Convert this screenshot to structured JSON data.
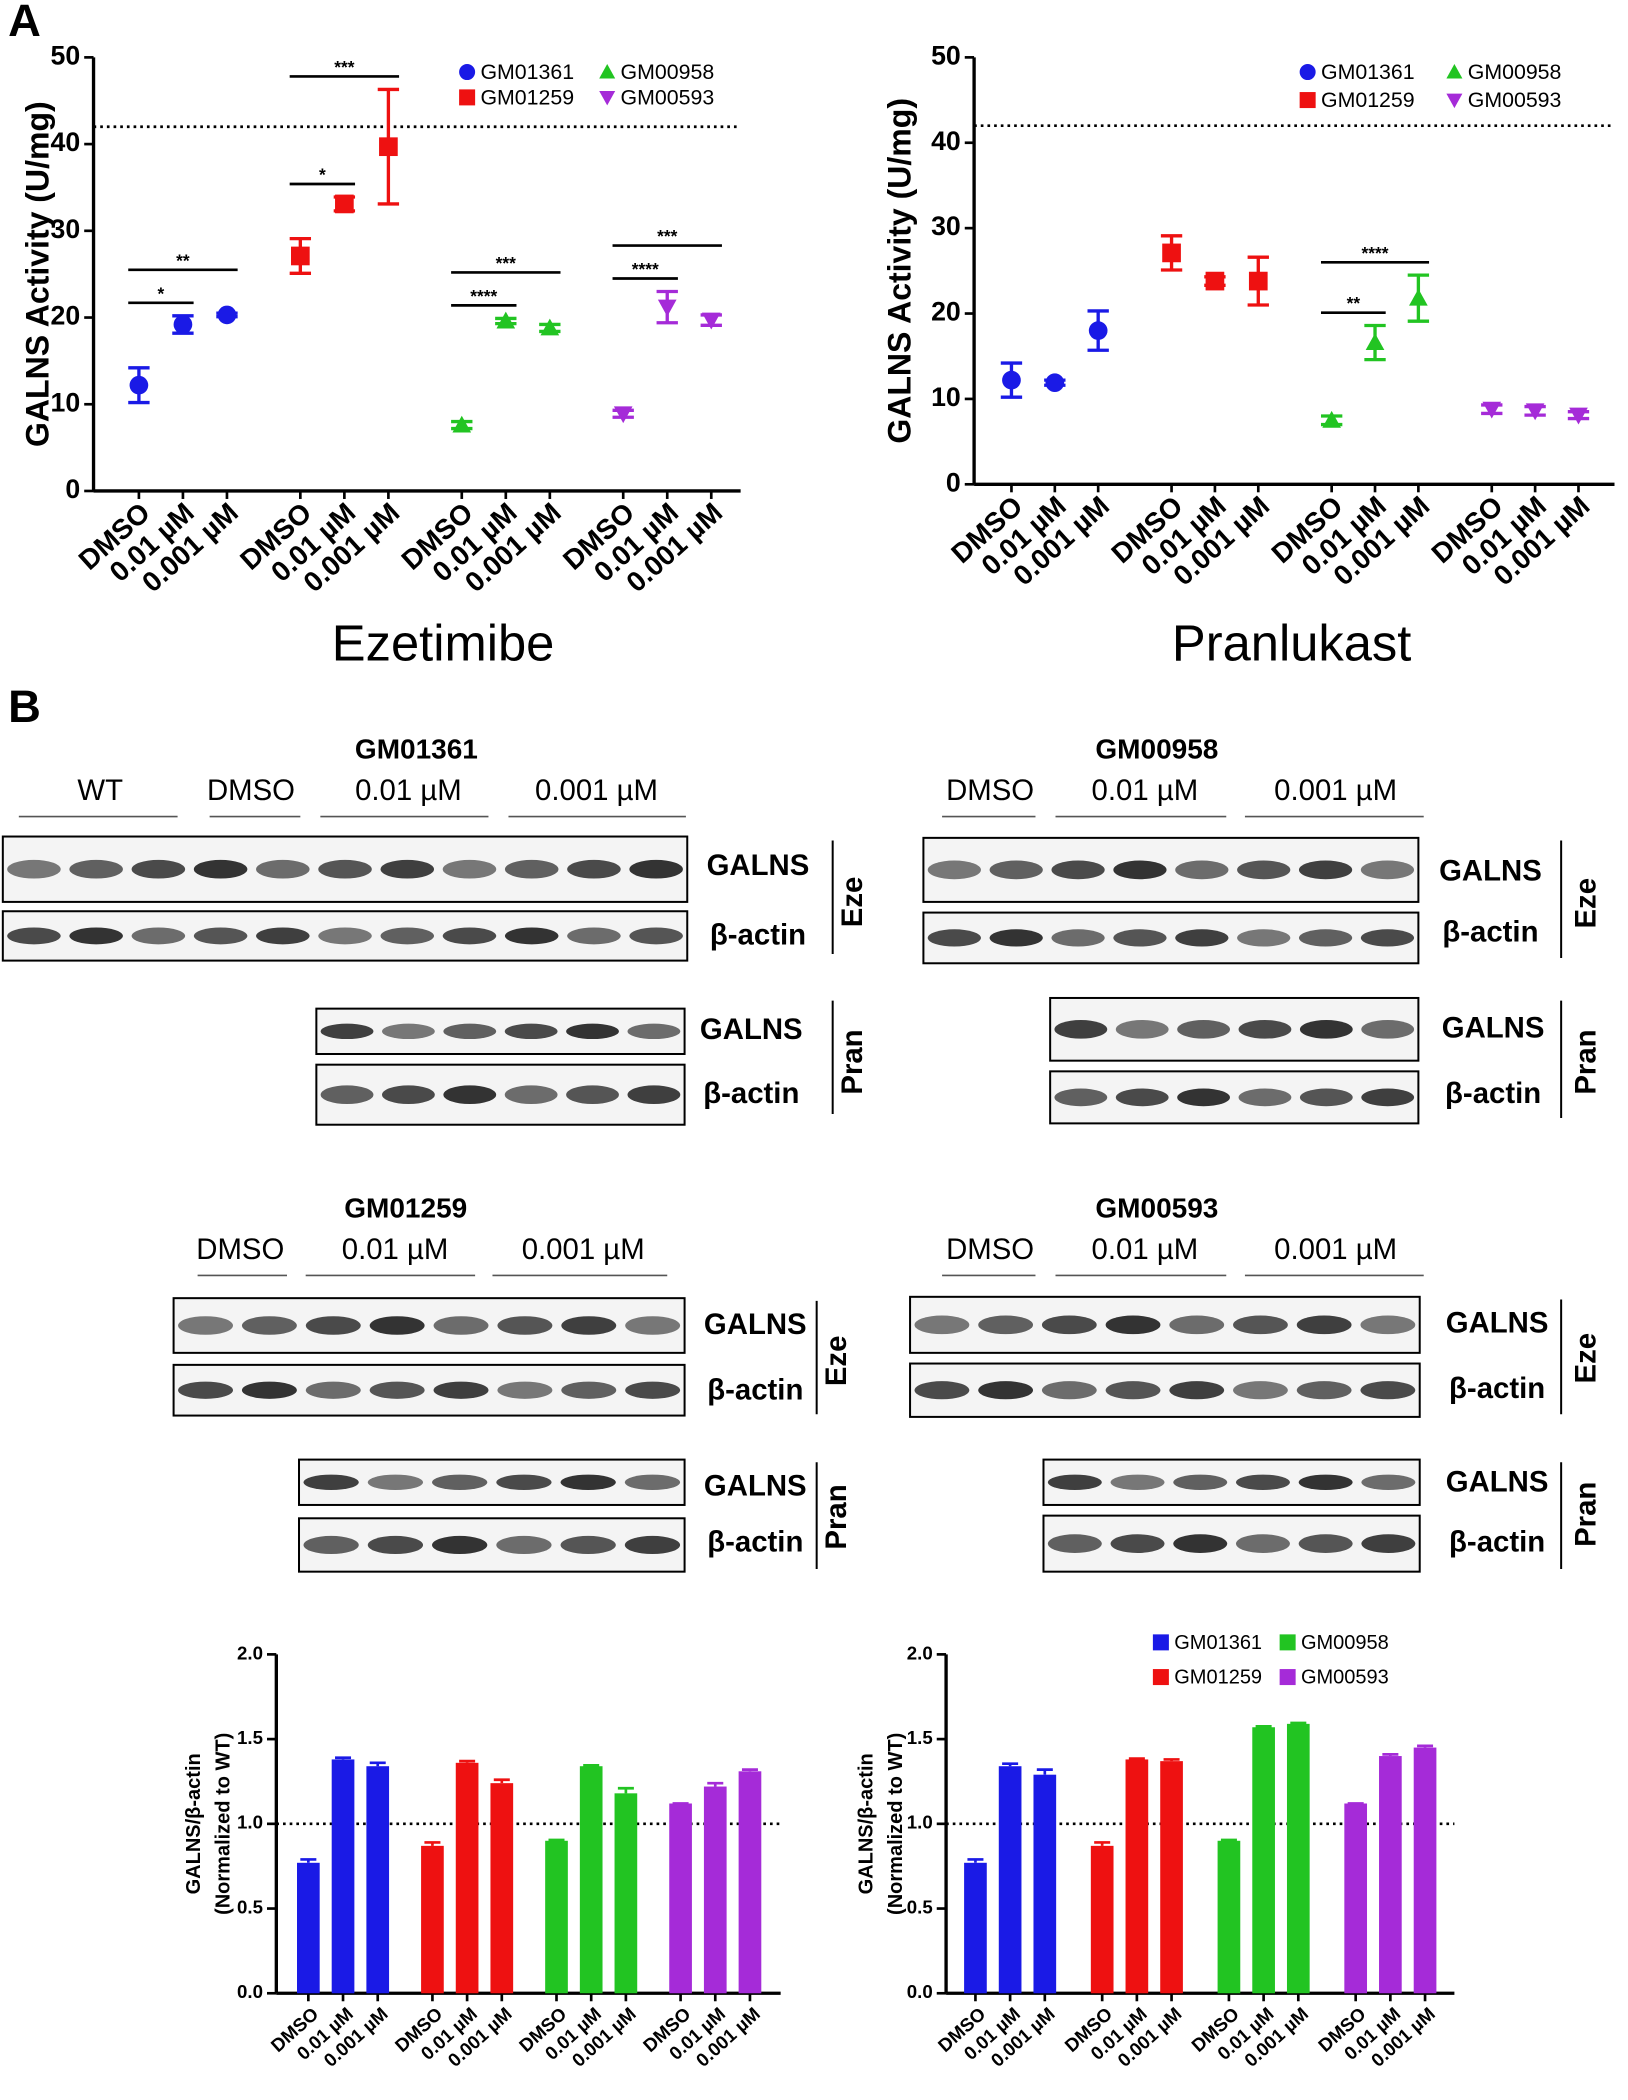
{
  "panels": [
    "A",
    "B"
  ],
  "chart_data": [
    {
      "type": "scatter",
      "x_title": "Ezetimibe",
      "y_title": "GALNS Activity (U/mg)",
      "categories": [
        "DMSO",
        "0.01 µM",
        "0.001 µM",
        "DMSO",
        "0.01 µM",
        "0.001 µM",
        "DMSO",
        "0.01 µM",
        "0.001 µM",
        "DMSO",
        "0.01 µM",
        "0.001 µM"
      ],
      "series": [
        {
          "name": "GM01361",
          "color": "#1a1ae6",
          "marker": "circle",
          "values": [
            12.2,
            19.2,
            20.3,
            null,
            null,
            null,
            null,
            null,
            null,
            null,
            null,
            null
          ],
          "errors": [
            2.0,
            1.0,
            0.2,
            null,
            null,
            null,
            null,
            null,
            null,
            null,
            null,
            null
          ]
        },
        {
          "name": "GM01259",
          "color": "#ee1111",
          "marker": "square",
          "values": [
            null,
            null,
            null,
            27.1,
            33.1,
            39.7,
            null,
            null,
            null,
            null,
            null,
            null
          ],
          "errors": [
            null,
            null,
            null,
            2.0,
            0.8,
            6.6,
            null,
            null,
            null,
            null,
            null,
            null
          ]
        },
        {
          "name": "GM00958",
          "color": "#22c422",
          "marker": "triangle-up",
          "values": [
            null,
            null,
            null,
            null,
            null,
            null,
            7.6,
            19.6,
            18.8,
            null,
            null,
            null
          ],
          "errors": [
            null,
            null,
            null,
            null,
            null,
            null,
            0.4,
            0.3,
            0.4,
            null,
            null,
            null
          ]
        },
        {
          "name": "GM00593",
          "color": "#a52bd8",
          "marker": "triangle-down",
          "values": [
            null,
            null,
            null,
            null,
            null,
            null,
            null,
            null,
            null,
            8.9,
            21.2,
            19.7
          ],
          "errors": [
            null,
            null,
            null,
            null,
            null,
            null,
            null,
            null,
            null,
            0.4,
            1.8,
            0.6
          ]
        }
      ],
      "ylim": [
        0,
        50
      ],
      "yticks": [
        0,
        10,
        20,
        30,
        40,
        50
      ],
      "reference_line": 42,
      "legend": "upper right",
      "significance": [
        {
          "label": "*",
          "between": [
            0,
            1
          ]
        },
        {
          "label": "**",
          "between": [
            0,
            2
          ]
        },
        {
          "label": "*",
          "between": [
            3,
            4
          ]
        },
        {
          "label": "***",
          "between": [
            3,
            5
          ]
        },
        {
          "label": "****",
          "between": [
            6,
            7
          ]
        },
        {
          "label": "***",
          "between": [
            6,
            8
          ]
        },
        {
          "label": "****",
          "between": [
            9,
            10
          ]
        },
        {
          "label": "***",
          "between": [
            9,
            11
          ]
        }
      ]
    },
    {
      "type": "scatter",
      "x_title": "Pranlukast",
      "y_title": "GALNS Activity (U/mg)",
      "categories": [
        "DMSO",
        "0.01 µM",
        "0.001 µM",
        "DMSO",
        "0.01 µM",
        "0.001 µM",
        "DMSO",
        "0.01 µM",
        "0.001 µM",
        "DMSO",
        "0.01 µM",
        "0.001 µM"
      ],
      "series": [
        {
          "name": "GM01361",
          "color": "#1a1ae6",
          "marker": "circle",
          "values": [
            12.2,
            11.9,
            18.0,
            null,
            null,
            null,
            null,
            null,
            null,
            null,
            null,
            null
          ],
          "errors": [
            2.0,
            0.3,
            2.3,
            null,
            null,
            null,
            null,
            null,
            null,
            null,
            null,
            null
          ]
        },
        {
          "name": "GM01259",
          "color": "#ee1111",
          "marker": "square",
          "values": [
            null,
            null,
            null,
            27.1,
            23.8,
            23.8,
            null,
            null,
            null,
            null,
            null,
            null
          ],
          "errors": [
            null,
            null,
            null,
            2.0,
            0.5,
            2.8,
            null,
            null,
            null,
            null,
            null,
            null
          ]
        },
        {
          "name": "GM00958",
          "color": "#22c422",
          "marker": "triangle-up",
          "values": [
            null,
            null,
            null,
            null,
            null,
            null,
            7.5,
            16.6,
            21.8,
            null,
            null,
            null
          ],
          "errors": [
            null,
            null,
            null,
            null,
            null,
            null,
            0.5,
            2.0,
            2.7,
            null,
            null,
            null
          ]
        },
        {
          "name": "GM00593",
          "color": "#a52bd8",
          "marker": "triangle-down",
          "values": [
            null,
            null,
            null,
            null,
            null,
            null,
            null,
            null,
            null,
            8.8,
            8.6,
            8.1
          ],
          "errors": [
            null,
            null,
            null,
            null,
            null,
            null,
            null,
            null,
            null,
            0.5,
            0.5,
            0.4
          ]
        }
      ],
      "ylim": [
        0,
        50
      ],
      "yticks": [
        0,
        10,
        20,
        30,
        40,
        50
      ],
      "reference_line": 42,
      "legend": "upper right",
      "significance": [
        {
          "label": "**",
          "between": [
            6,
            7
          ]
        },
        {
          "label": "****",
          "between": [
            6,
            8
          ]
        }
      ]
    },
    {
      "type": "bar",
      "y_title": [
        "GALNS/β-actin",
        "(Normalized to WT)"
      ],
      "categories": [
        "DMSO",
        "0.01 µM",
        "0.001 µM",
        "DMSO",
        "0.01 µM",
        "0.001 µM",
        "DMSO",
        "0.01 µM",
        "0.001 µM",
        "DMSO",
        "0.01 µM",
        "0.001 µM"
      ],
      "series": [
        {
          "color": "#1a1ae6",
          "values": [
            0.77,
            1.38,
            1.34,
            null,
            null,
            null,
            null,
            null,
            null,
            null,
            null,
            null
          ],
          "errors": [
            0.02,
            0.01,
            0.02,
            null,
            null,
            null,
            null,
            null,
            null,
            null,
            null,
            null
          ]
        },
        {
          "color": "#ee1111",
          "values": [
            null,
            null,
            null,
            0.87,
            1.36,
            1.24,
            null,
            null,
            null,
            null,
            null,
            null
          ],
          "errors": [
            null,
            null,
            null,
            0.02,
            0.01,
            0.02,
            null,
            null,
            null,
            null,
            null,
            null
          ]
        },
        {
          "color": "#22c422",
          "values": [
            null,
            null,
            null,
            null,
            null,
            null,
            0.9,
            1.34,
            1.18,
            null,
            null,
            null
          ],
          "errors": [
            null,
            null,
            null,
            null,
            null,
            null,
            0.005,
            0.005,
            0.03,
            null,
            null,
            null
          ]
        },
        {
          "color": "#a52bd8",
          "values": [
            null,
            null,
            null,
            null,
            null,
            null,
            null,
            null,
            null,
            1.12,
            1.22,
            1.31
          ],
          "errors": [
            null,
            null,
            null,
            null,
            null,
            null,
            null,
            null,
            null,
            0.0,
            0.02,
            0.01
          ]
        }
      ],
      "ylim": [
        0,
        2
      ],
      "yticks": [
        {
          "value": 0,
          "label": "0.0"
        },
        0.5,
        {
          "value": 1,
          "label": "1.0"
        },
        1.5,
        {
          "value": 2,
          "label": "2.0"
        }
      ],
      "reference_line": 1
    },
    {
      "type": "bar",
      "y_title": [
        "GALNS/β-actin",
        "(Normalized to WT)"
      ],
      "categories": [
        "DMSO",
        "0.01 µM",
        "0.001 µM",
        "DMSO",
        "0.01 µM",
        "0.001 µM",
        "DMSO",
        "0.01 µM",
        "0.001 µM",
        "DMSO",
        "0.01 µM",
        "0.001 µM"
      ],
      "series": [
        {
          "name": "GM01361",
          "color": "#1a1ae6",
          "values": [
            0.77,
            1.34,
            1.29,
            null,
            null,
            null,
            null,
            null,
            null,
            null,
            null,
            null
          ],
          "errors": [
            0.02,
            0.015,
            0.03,
            null,
            null,
            null,
            null,
            null,
            null,
            null,
            null,
            null
          ]
        },
        {
          "name": "GM01259",
          "color": "#ee1111",
          "values": [
            null,
            null,
            null,
            0.87,
            1.38,
            1.37,
            null,
            null,
            null,
            null,
            null,
            null
          ],
          "errors": [
            null,
            null,
            null,
            0.02,
            0.005,
            0.01,
            null,
            null,
            null,
            null,
            null,
            null
          ]
        },
        {
          "name": "GM00958",
          "color": "#22c422",
          "values": [
            null,
            null,
            null,
            null,
            null,
            null,
            0.9,
            1.57,
            1.59,
            null,
            null,
            null
          ],
          "errors": [
            null,
            null,
            null,
            null,
            null,
            null,
            0.005,
            0.005,
            0.005,
            null,
            null,
            null
          ]
        },
        {
          "name": "GM00593",
          "color": "#a52bd8",
          "values": [
            null,
            null,
            null,
            null,
            null,
            null,
            null,
            null,
            null,
            1.12,
            1.4,
            1.45
          ],
          "errors": [
            null,
            null,
            null,
            null,
            null,
            null,
            null,
            null,
            null,
            0.0,
            0.01,
            0.01
          ]
        }
      ],
      "ylim": [
        0,
        2
      ],
      "yticks": [
        {
          "value": 0,
          "label": "0.0"
        },
        0.5,
        {
          "value": 1,
          "label": "1.0"
        },
        1.5,
        {
          "value": 2,
          "label": "2.0"
        }
      ],
      "reference_line": 1,
      "legend": "upper right"
    }
  ],
  "blots": [
    {
      "title": "GM01361",
      "lanes": [
        "WT",
        "DMSO",
        "0.01 µM",
        "0.001 µM"
      ],
      "rows": [
        "GALNS",
        "β-actin"
      ],
      "treatments": [
        "Eze",
        "Pran"
      ]
    },
    {
      "title": "GM00958",
      "lanes": [
        "DMSO",
        "0.01 µM",
        "0.001 µM"
      ],
      "rows": [
        "GALNS",
        "β-actin"
      ],
      "treatments": [
        "Eze",
        "Pran"
      ]
    },
    {
      "title": "GM01259",
      "lanes": [
        "DMSO",
        "0.01 µM",
        "0.001 µM"
      ],
      "rows": [
        "GALNS",
        "β-actin"
      ],
      "treatments": [
        "Eze",
        "Pran"
      ]
    },
    {
      "title": "GM00593",
      "lanes": [
        "DMSO",
        "0.01 µM",
        "0.001 µM"
      ],
      "rows": [
        "GALNS",
        "β-actin"
      ],
      "treatments": [
        "Eze",
        "Pran"
      ]
    }
  ]
}
